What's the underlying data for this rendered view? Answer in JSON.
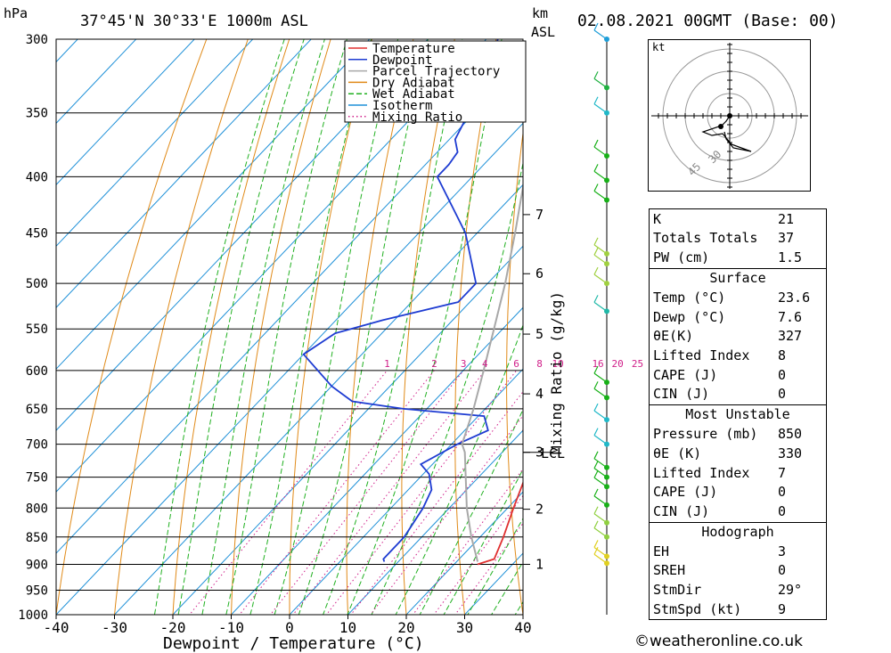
{
  "header": {
    "hpa_unit": "hPa",
    "location": "37°45'N  30°33'E  1000m  ASL",
    "km_label": "km",
    "asl_label": "ASL",
    "datetime": "02.08.2021  00GMT  (Base: 00)"
  },
  "chart_data": {
    "type": "line",
    "xlabel": "Dewpoint / Temperature (°C)",
    "y2label": "Mixing Ratio (g/kg)",
    "xlim": [
      -40,
      40
    ],
    "ylim": [
      1000,
      300
    ],
    "x_ticks": [
      "-40",
      "-30",
      "-20",
      "-10",
      "0",
      "10",
      "20",
      "30",
      "40"
    ],
    "pressure_ticks": [
      "300",
      "350",
      "400",
      "450",
      "500",
      "550",
      "600",
      "650",
      "700",
      "750",
      "800",
      "850",
      "900",
      "950",
      "1000"
    ],
    "km_ticks": [
      {
        "label": "7",
        "p": 433
      },
      {
        "label": "6",
        "p": 490
      },
      {
        "label": "5",
        "p": 556
      },
      {
        "label": "4",
        "p": 630
      },
      {
        "label": "3",
        "p": 712
      },
      {
        "label": "2",
        "p": 802
      },
      {
        "label": "1",
        "p": 900
      }
    ],
    "lcl_label": "LCL",
    "lcl_pressure": 712,
    "mixing_ratio_labels": [
      "1",
      "2",
      "3",
      "4",
      "6",
      "8",
      "10",
      "16",
      "20",
      "25"
    ],
    "legend": [
      "Temperature",
      "Dewpoint",
      "Parcel Trajectory",
      "Dry Adiabat",
      "Wet Adiabat",
      "Isotherm",
      "Mixing Ratio"
    ],
    "colors": {
      "temperature": "#e03030",
      "dewpoint": "#1e3cd2",
      "parcel": "#a8a8a8",
      "dry_adiabat": "#e08a18",
      "wet_adiabat": "#20b020",
      "isotherm": "#1e90d8",
      "mixing_ratio": "#d0208a"
    },
    "series": [
      {
        "name": "Temperature",
        "points": [
          [
            900,
            24.0
          ],
          [
            890,
            26.0
          ],
          [
            850,
            24.0
          ],
          [
            800,
            21.0
          ],
          [
            750,
            18.0
          ],
          [
            700,
            13.5
          ],
          [
            680,
            10.0
          ],
          [
            660,
            9.0
          ],
          [
            640,
            12.0
          ],
          [
            600,
            10.0
          ],
          [
            550,
            5.0
          ],
          [
            520,
            4.0
          ],
          [
            500,
            3.0
          ],
          [
            450,
            -2.0
          ],
          [
            400,
            -6.5
          ],
          [
            390,
            -5.0
          ],
          [
            360,
            -5.5
          ]
        ]
      },
      {
        "name": "Dewpoint",
        "points": [
          [
            895,
            7.6
          ],
          [
            890,
            7.0
          ],
          [
            850,
            7.0
          ],
          [
            800,
            5.5
          ],
          [
            770,
            4.0
          ],
          [
            745,
            1.0
          ],
          [
            730,
            -2.0
          ],
          [
            700,
            1.0
          ],
          [
            680,
            4.0
          ],
          [
            660,
            1.0
          ],
          [
            650,
            -14.0
          ],
          [
            640,
            -24.0
          ],
          [
            620,
            -30.0
          ],
          [
            580,
            -40.0
          ],
          [
            555,
            -38.0
          ],
          [
            540,
            -32.0
          ],
          [
            520,
            -22.0
          ],
          [
            500,
            -22.0
          ],
          [
            450,
            -32.0
          ],
          [
            400,
            -46.0
          ],
          [
            390,
            -46.0
          ],
          [
            380,
            -46.5
          ],
          [
            370,
            -49.0
          ],
          [
            350,
            -51.0
          ],
          [
            300,
            -58.0
          ]
        ]
      },
      {
        "name": "Parcel Trajectory",
        "points": [
          [
            895,
            23.6
          ],
          [
            850,
            18.5
          ],
          [
            800,
            13.0
          ],
          [
            750,
            7.8
          ],
          [
            712,
            3.6
          ],
          [
            700,
            1.8
          ],
          [
            650,
            -2.0
          ],
          [
            600,
            -6.5
          ],
          [
            550,
            -11.5
          ],
          [
            500,
            -17.0
          ],
          [
            450,
            -23.5
          ],
          [
            400,
            -31.0
          ],
          [
            350,
            -39.5
          ],
          [
            300,
            -49.5
          ]
        ]
      }
    ],
    "wind_profile": [
      {
        "p": 300,
        "color": "#1e9ed8"
      },
      {
        "p": 332,
        "color": "#20b040"
      },
      {
        "p": 350,
        "color": "#20b8c8"
      },
      {
        "p": 383,
        "color": "#18b018"
      },
      {
        "p": 403,
        "color": "#18b018"
      },
      {
        "p": 420,
        "color": "#18b018"
      },
      {
        "p": 470,
        "color": "#a0d040"
      },
      {
        "p": 480,
        "color": "#a0d040"
      },
      {
        "p": 500,
        "color": "#a0d040"
      },
      {
        "p": 530,
        "color": "#20b8a8"
      },
      {
        "p": 615,
        "color": "#18b018"
      },
      {
        "p": 635,
        "color": "#18b018"
      },
      {
        "p": 665,
        "color": "#20b8c8"
      },
      {
        "p": 700,
        "color": "#20b8c8"
      },
      {
        "p": 735,
        "color": "#18b018"
      },
      {
        "p": 750,
        "color": "#18b018"
      },
      {
        "p": 765,
        "color": "#18b018"
      },
      {
        "p": 795,
        "color": "#18b018"
      },
      {
        "p": 825,
        "color": "#90d040"
      },
      {
        "p": 850,
        "color": "#90d040"
      },
      {
        "p": 885,
        "color": "#e0d020"
      },
      {
        "p": 898,
        "color": "#e0d020"
      }
    ]
  },
  "hodograph": {
    "unit_label": "kt",
    "ring_labels": [
      "30",
      "45"
    ]
  },
  "indices": [
    {
      "label": "K",
      "value": "21"
    },
    {
      "label": "Totals Totals",
      "value": "37"
    },
    {
      "label": "PW (cm)",
      "value": "1.5"
    }
  ],
  "surface": {
    "title": "Surface",
    "rows": [
      {
        "label": "Temp (°C)",
        "value": "23.6"
      },
      {
        "label": "Dewp (°C)",
        "value": "7.6"
      },
      {
        "label": "θE(K)",
        "value": "327"
      },
      {
        "label": "Lifted Index",
        "value": "8"
      },
      {
        "label": "CAPE (J)",
        "value": "0"
      },
      {
        "label": "CIN (J)",
        "value": "0"
      }
    ]
  },
  "most_unstable": {
    "title": "Most Unstable",
    "rows": [
      {
        "label": "Pressure (mb)",
        "value": "850"
      },
      {
        "label": "θE (K)",
        "value": "330"
      },
      {
        "label": "Lifted Index",
        "value": "7"
      },
      {
        "label": "CAPE (J)",
        "value": "0"
      },
      {
        "label": "CIN (J)",
        "value": "0"
      }
    ]
  },
  "hodograph_table": {
    "title": "Hodograph",
    "rows": [
      {
        "label": "EH",
        "value": "3"
      },
      {
        "label": "SREH",
        "value": "0"
      },
      {
        "label": "StmDir",
        "value": "29°"
      },
      {
        "label": "StmSpd (kt)",
        "value": "9"
      }
    ]
  },
  "copyright": "©weatheronline.co.uk"
}
